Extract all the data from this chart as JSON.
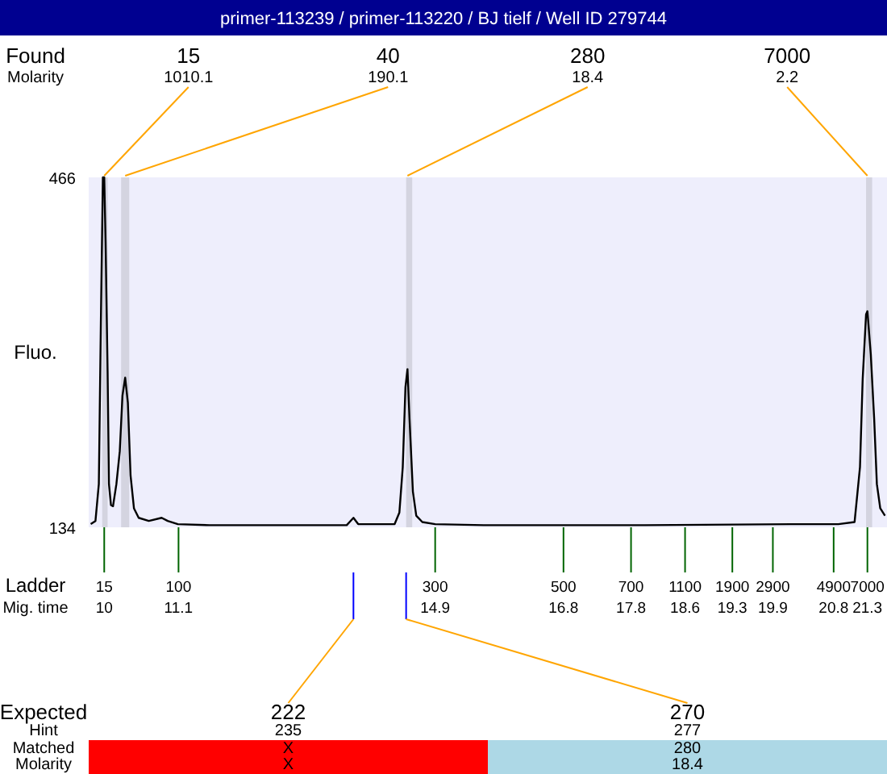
{
  "chart_data": {
    "type": "line",
    "title": "primer-113239 / primer-113220 / BJ tielf / Well ID 279744",
    "ylabel": "Fluo.",
    "xlim": [
      9.77,
      21.59
    ],
    "ylim": [
      134,
      466
    ],
    "yticks": [
      134,
      466
    ],
    "xticks": [
      10,
      11.1,
      14.9,
      16.8,
      17.8,
      18.6,
      19.3,
      19.9,
      20.8,
      21.3
    ],
    "grid": false,
    "marker": "none",
    "line_style": "solid",
    "bands": [
      {
        "axis": "x",
        "from": 9.97,
        "to": 10.05,
        "color": "#d4d4e0"
      },
      {
        "axis": "x",
        "from": 10.25,
        "to": 10.37,
        "color": "#d4d4e0"
      },
      {
        "axis": "x",
        "from": 14.47,
        "to": 14.56,
        "color": "#d4d4e0"
      },
      {
        "axis": "x",
        "from": 21.28,
        "to": 21.37,
        "color": "#d4d4e0"
      }
    ],
    "series": [
      {
        "color": "#000000",
        "x": [
          9.8,
          9.87,
          9.92,
          9.95,
          9.98,
          10.0,
          10.02,
          10.05,
          10.07,
          10.1,
          10.13,
          10.18,
          10.23,
          10.27,
          10.31,
          10.35,
          10.39,
          10.44,
          10.51,
          10.66,
          10.85,
          10.94,
          11.09,
          11.56,
          13.59,
          13.69,
          13.76,
          14.19,
          14.3,
          14.37,
          14.42,
          14.46,
          14.49,
          14.52,
          14.57,
          14.62,
          14.71,
          14.9,
          15.62,
          18.0,
          20.16,
          20.39,
          20.87,
          21.11,
          21.19,
          21.23,
          21.28,
          21.3,
          21.35,
          21.4,
          21.44,
          21.49,
          21.56
        ],
        "values": [
          137,
          140,
          175,
          328,
          466,
          466,
          405,
          282,
          175,
          155,
          154,
          175,
          206,
          259,
          276,
          252,
          183,
          152,
          143,
          140,
          143,
          140,
          137,
          136,
          136,
          143,
          137,
          137,
          137,
          148,
          191,
          267,
          284,
          237,
          168,
          145,
          139,
          137,
          136,
          136,
          137,
          137,
          137,
          139,
          191,
          275,
          336,
          339,
          298,
          237,
          175,
          152,
          145
        ]
      }
    ],
    "annotations": [
      "Found",
      "Molarity",
      "Ladder",
      "Mig. time",
      "Expected",
      "Hint",
      "Matched",
      "Molarity",
      {
        "text": "15",
        "x": 10.0
      },
      "1010.1",
      {
        "text": "40",
        "x": 10.31
      },
      "190.1",
      {
        "text": "280",
        "x": 14.49
      },
      "18.4",
      {
        "text": "7000",
        "x": 21.3
      },
      "2.2",
      {
        "text": "222",
        "x": 13.69
      },
      "235",
      "X",
      "X",
      {
        "text": "270",
        "x": 14.47
      },
      "277",
      "280",
      "18.4",
      "15",
      "100",
      "300",
      "500",
      "700",
      "1100",
      "1900",
      "2900",
      "4900",
      "7000"
    ]
  }
}
